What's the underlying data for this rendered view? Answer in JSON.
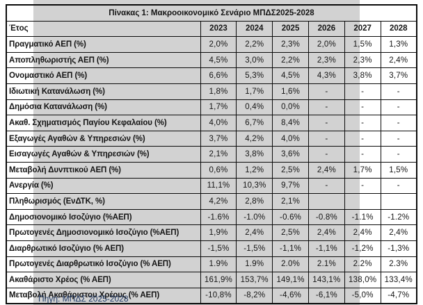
{
  "title": "Πίνακας 1: Μακροοικονομικό Σενάριο ΜΠΔΣ2025-2028",
  "source": "Πηγή: ΜΠΔΣ 2025-2028",
  "colors": {
    "accent_navy": "#1f3864",
    "band_gray": "#d2d2d2",
    "border_black": "#0a0a0a"
  },
  "table": {
    "header": [
      "Έτος",
      "2023",
      "2024",
      "2025",
      "2026",
      "2027",
      "2028"
    ],
    "rows": [
      {
        "label": "Πραγματικό ΑΕΠ (%)",
        "values": [
          "2,0%",
          "2,2%",
          "2,3%",
          "2,0%",
          "1,5%",
          "1,3%"
        ]
      },
      {
        "label": "Αποπληθωριστής ΑΕΠ (%)",
        "values": [
          "4,5%",
          "3,0%",
          "2,2%",
          "2,3%",
          "2,3%",
          "2,4%"
        ]
      },
      {
        "label": "Ονομαστικό ΑΕΠ (%)",
        "values": [
          "6,6%",
          "5,3%",
          "4,5%",
          "4,3%",
          "3,8%",
          "3,7%"
        ]
      },
      {
        "label": "Ιδιωτική Κατανάλωση (%)",
        "values": [
          "1,8%",
          "1,7%",
          "1,6%",
          "-",
          "-",
          "-"
        ]
      },
      {
        "label": "Δημόσια Κατανάλωση (%)",
        "values": [
          "1,7%",
          "0,4%",
          "0,0%",
          "-",
          "-",
          "-"
        ]
      },
      {
        "label": "Ακαθ. Σχηματισμός Παγίου Κεφαλαίου (%)",
        "values": [
          "4,0%",
          "6,7%",
          "8,4%",
          "-",
          "-",
          "-"
        ]
      },
      {
        "label": "Εξαγωγές Αγαθών & Υπηρεσιών (%)",
        "values": [
          "3,7%",
          "4,2%",
          "4,0%",
          "-",
          "-",
          "-"
        ]
      },
      {
        "label": "Εισαγωγές Αγαθών & Υπηρεσιών (%)",
        "values": [
          "2,1%",
          "3,8%",
          "3,6%",
          "-",
          "-",
          "-"
        ]
      },
      {
        "label": "Μεταβολή Δυνπτικού ΑΕΠ (%)",
        "values": [
          "0,6%",
          "1,2%",
          "2,5%",
          "2,4%",
          "1,7%",
          "1,5%"
        ]
      },
      {
        "label": "Ανεργία (%)",
        "values": [
          "11,1%",
          "10,3%",
          "9,7%",
          "-",
          "-",
          "-"
        ]
      },
      {
        "label": "Πληθωρισμός (ΕνΔΤΚ, %)",
        "values": [
          "4,2%",
          "2,8%",
          "2,1%",
          "",
          "",
          ""
        ]
      },
      {
        "label": "Δημοσιονομικό Ισοζύγιο (%ΑΕΠ)",
        "values": [
          "-1.6%",
          "-1.0%",
          "-0.6%",
          "-0.8%",
          "-1.1%",
          "-1.2%"
        ]
      },
      {
        "label": "Πρωτογενές Δημοσιονομικό Ισοζύγιο (%ΑΕΠ)",
        "values": [
          "1,9%",
          "2,4%",
          "2,5%",
          "2,4%",
          "2,4%",
          "2,4%"
        ]
      },
      {
        "label": "Διαρθρωτικό Ισοζύγιο (% ΑΕΠ)",
        "values": [
          "-1,5%",
          "-1,5%",
          "-1,1%",
          "-1,1%",
          "-1,2%",
          "-1,3%"
        ]
      },
      {
        "label": "Πρωτογενές Διαρθρωτικό Ισοζύγιο (% ΑΕΠ)",
        "values": [
          "1.9%",
          "1.9%",
          "2.0%",
          "2.1%",
          "2.2%",
          "2.3%"
        ]
      },
      {
        "label": "Ακαθάριστο Χρέος (% ΑΕΠ)",
        "values": [
          "161,9%",
          "153,7%",
          "149,1%",
          "143,1%",
          "138,0%",
          "133,4%"
        ]
      },
      {
        "label": "Μεταβολή Ακαθάριστου Χρέους (% ΑΕΠ)",
        "values": [
          "-10,8%",
          "-8,2%",
          "-4,6%",
          "-6,1%",
          "-5,0%",
          "-4,7%"
        ]
      }
    ]
  }
}
